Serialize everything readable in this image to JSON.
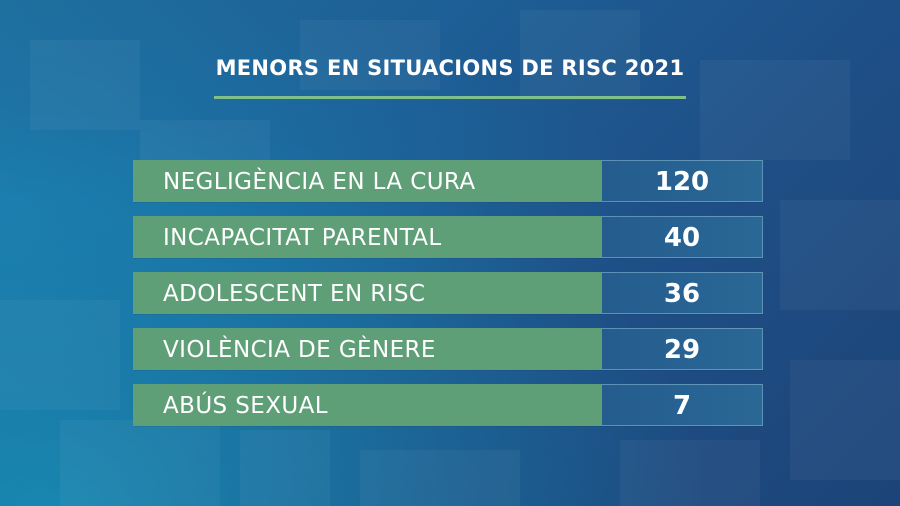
{
  "title": "MENORS EN SITUACIONS DE RISC 2021",
  "colors": {
    "label_background": "#5f9f78",
    "value_background": "#245c8e",
    "title_rule": "#7fbf8a",
    "text": "#ffffff"
  },
  "rows": [
    {
      "label": "NEGLIGÈNCIA EN LA CURA",
      "value": "120"
    },
    {
      "label": "INCAPACITAT PARENTAL",
      "value": "40"
    },
    {
      "label": "ADOLESCENT EN RISC",
      "value": "36"
    },
    {
      "label": "VIOLÈNCIA DE GÈNERE",
      "value": "29"
    },
    {
      "label": "ABÚS SEXUAL",
      "value": "7"
    }
  ]
}
